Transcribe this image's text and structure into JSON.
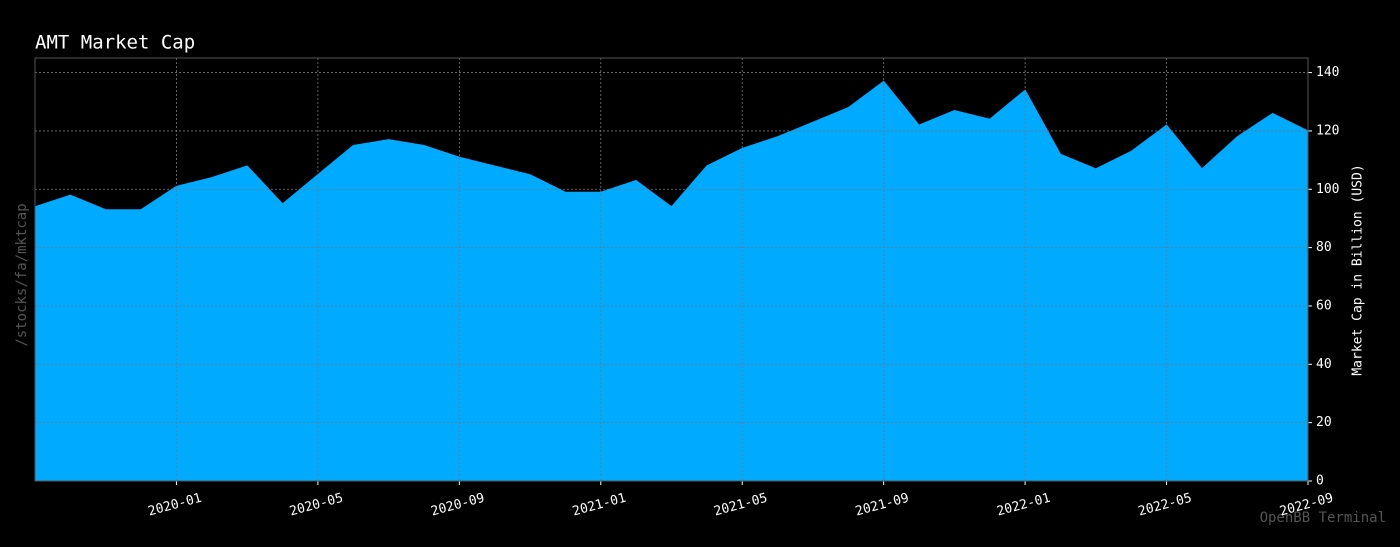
{
  "chart_data": {
    "type": "area",
    "title": "AMT Market Cap",
    "y_label": "Market Cap in Billion (USD)",
    "side_label": "/stocks/fa/mktcap",
    "watermark": "OpenBB Terminal",
    "x": [
      "2019-09",
      "2019-10",
      "2019-11",
      "2019-12",
      "2020-01",
      "2020-02",
      "2020-03",
      "2020-04",
      "2020-05",
      "2020-06",
      "2020-07",
      "2020-08",
      "2020-09",
      "2020-10",
      "2020-11",
      "2020-12",
      "2021-01",
      "2021-02",
      "2021-03",
      "2021-04",
      "2021-05",
      "2021-06",
      "2021-07",
      "2021-08",
      "2021-09",
      "2021-10",
      "2021-11",
      "2021-12",
      "2022-01",
      "2022-02",
      "2022-03",
      "2022-04",
      "2022-05",
      "2022-06",
      "2022-07",
      "2022-08",
      "2022-09"
    ],
    "values": [
      94,
      98,
      93,
      93,
      101,
      104,
      108,
      95,
      105,
      115,
      117,
      115,
      111,
      108,
      105,
      99,
      99,
      103,
      94,
      108,
      114,
      118,
      123,
      128,
      137,
      122,
      127,
      124,
      134,
      112,
      107,
      113,
      122,
      107,
      118,
      126,
      120
    ],
    "color": "#00aaff",
    "xlim": [
      "2019-09",
      "2022-09"
    ],
    "xticks": [
      "2020-01",
      "2020-05",
      "2020-09",
      "2021-01",
      "2021-05",
      "2021-09",
      "2022-01",
      "2022-05",
      "2022-09"
    ],
    "ylim": [
      0,
      145
    ],
    "yticks": [
      0,
      20,
      40,
      60,
      80,
      100,
      120,
      140
    ],
    "grid": true,
    "y_axis_side": "right"
  }
}
